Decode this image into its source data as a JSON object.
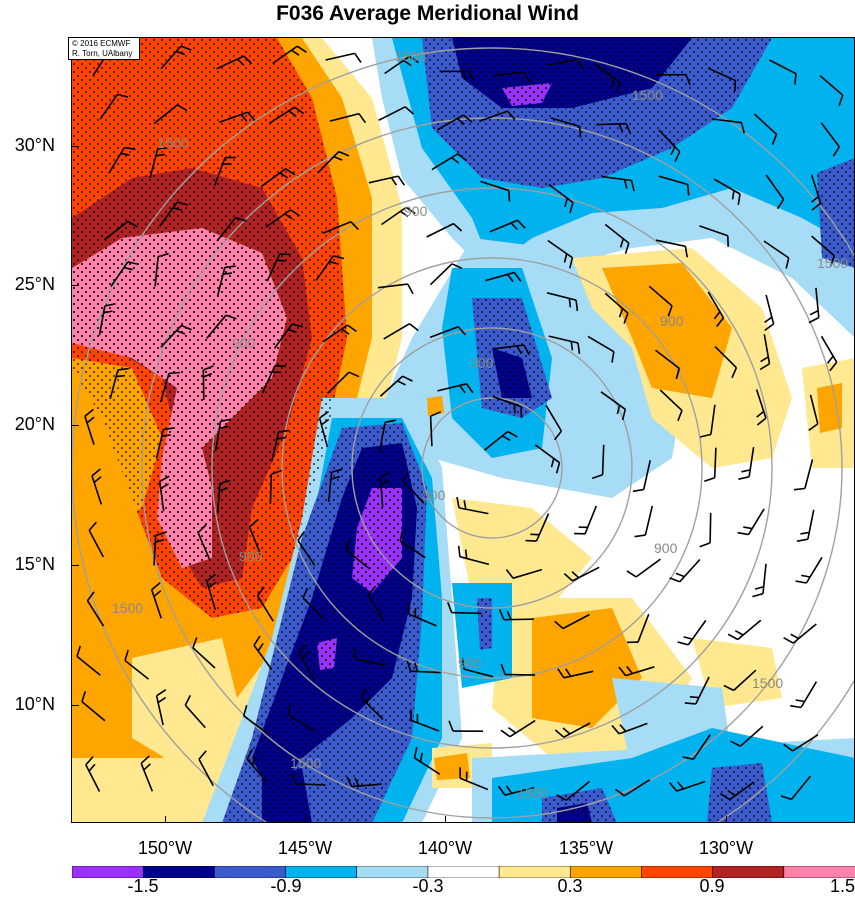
{
  "title": "F036 Average Meridional Wind",
  "credit": {
    "line1": "© 2016 ECMWF",
    "line2": "R. Torn, UAlbany"
  },
  "axes": {
    "lat_labels": [
      "30°N",
      "25°N",
      "20°N",
      "15°N",
      "10°N"
    ],
    "lon_labels": [
      "150°W",
      "145°W",
      "140°W",
      "135°W",
      "130°W"
    ],
    "lat_values": [
      30,
      25,
      20,
      15,
      10
    ],
    "lon_values": [
      -150,
      -145,
      -140,
      -135,
      -130
    ]
  },
  "colorbar": {
    "labels": [
      "-1.5",
      "-0.9",
      "-0.3",
      "0.3",
      "0.9",
      "1.5"
    ],
    "colors": [
      "#9b30ff",
      "#00008b",
      "#3b5bcc",
      "#00b2ee",
      "#a6dcf5",
      "#ffffff",
      "#ffe88f",
      "#ffa500",
      "#ff4500",
      "#b22222",
      "#ff82ab"
    ]
  },
  "contour_labels": {
    "c300": "300",
    "c900": "900",
    "c1500": "1500"
  },
  "colors": {
    "violet": "#9b30ff",
    "navy": "#00008b",
    "royal": "#3b5bcc",
    "sky": "#00b2ee",
    "pale": "#a6dcf5",
    "yellow": "#ffe88f",
    "orange": "#ffa500",
    "redorange": "#ff4500",
    "darkred": "#b22222",
    "pink": "#ff82ab",
    "contour": "#a0a0a0"
  }
}
